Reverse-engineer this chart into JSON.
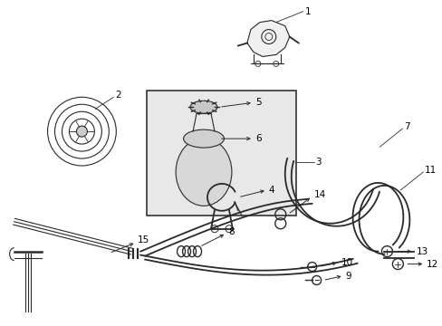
{
  "bg_color": "#ffffff",
  "fig_width": 4.89,
  "fig_height": 3.6,
  "dpi": 100,
  "line_color": "#2a2a2a",
  "label_color": "#000000",
  "label_fontsize": 7.5,
  "box_facecolor": "#e8e8e8",
  "box_edgecolor": "#333333"
}
